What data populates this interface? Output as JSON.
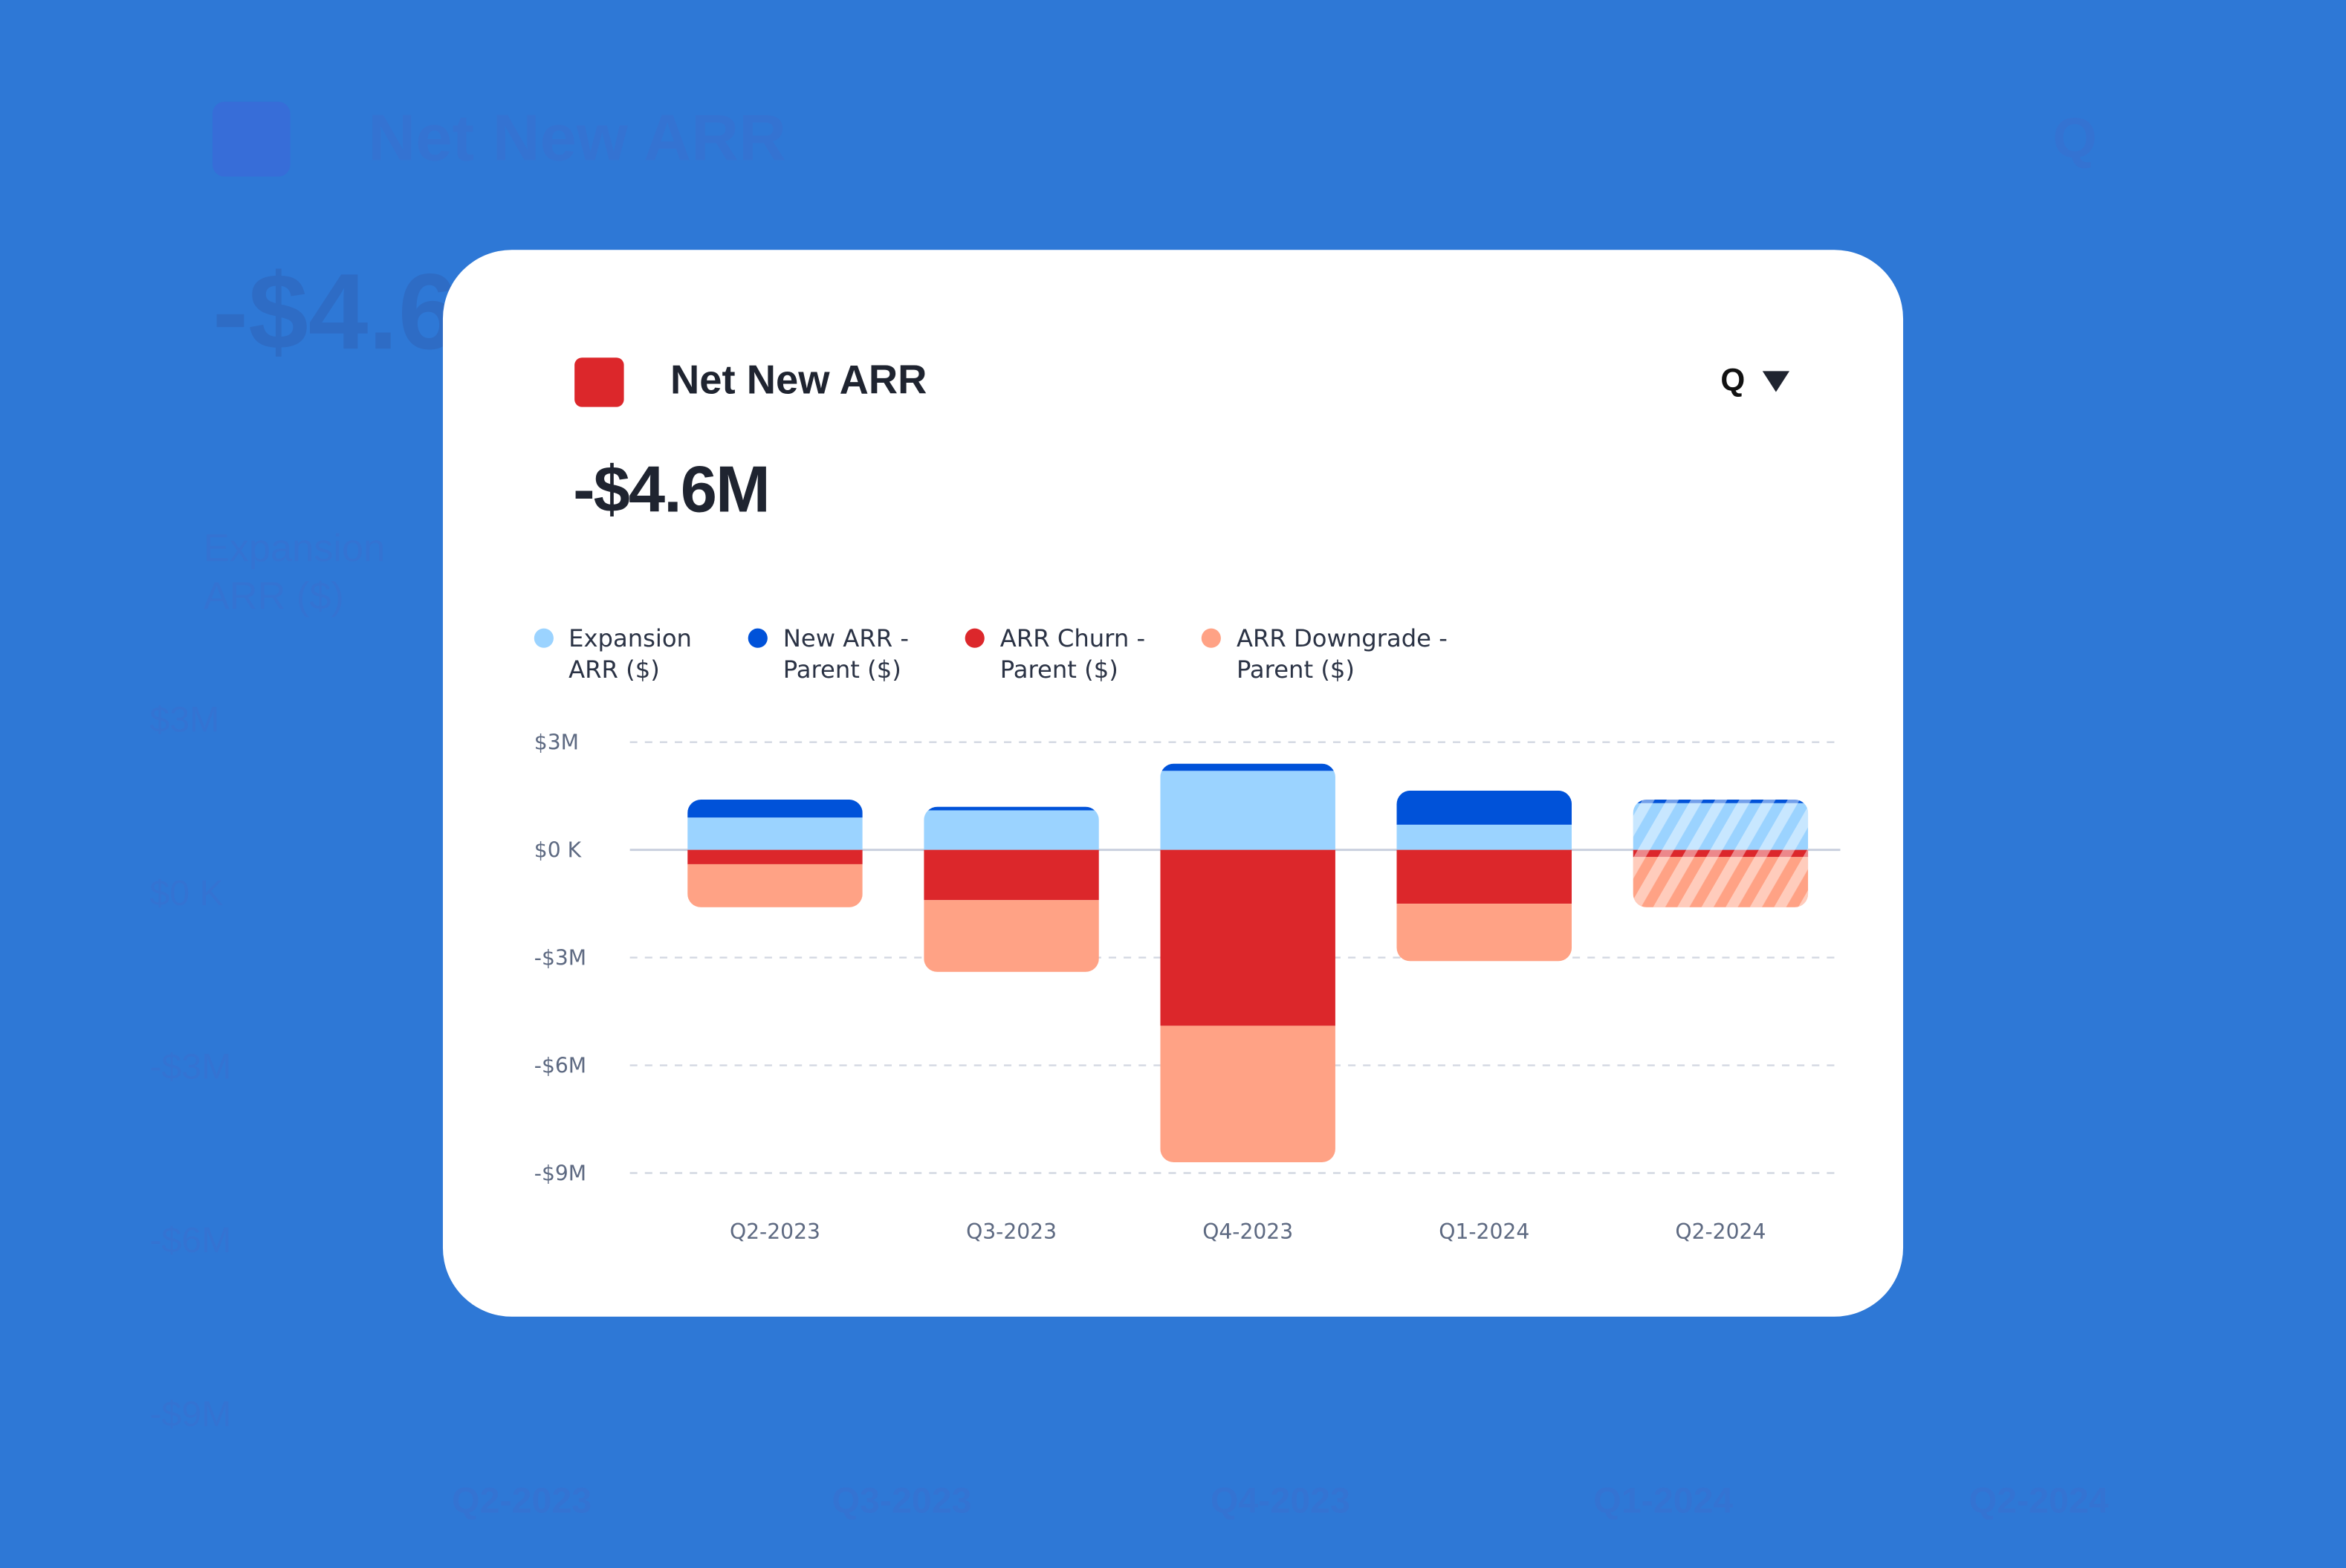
{
  "header": {
    "title": "Net New ARR",
    "period_label": "Q",
    "kpi_value": "-$4.6M"
  },
  "colors": {
    "background": "#2E78D6",
    "expansion": "#9BD3FF",
    "new_arr": "#0052D9",
    "churn": "#DC272B",
    "downgrade": "#FFA285",
    "title_marker": "#DC272B"
  },
  "chart_data": {
    "type": "bar",
    "stacked": true,
    "title": "Net New ARR",
    "categories": [
      "Q2-2023",
      "Q3-2023",
      "Q4-2023",
      "Q1-2024",
      "Q2-2024"
    ],
    "projected": [
      false,
      false,
      false,
      false,
      true
    ],
    "series": [
      {
        "name": "Expansion ARR ($)",
        "color": "#9BD3FF",
        "values": [
          0.9,
          1.1,
          2.2,
          0.7,
          1.3
        ]
      },
      {
        "name": "New ARR - Parent ($)",
        "color": "#0052D9",
        "values": [
          0.5,
          0.1,
          0.2,
          0.95,
          0.1
        ]
      },
      {
        "name": "ARR Churn - Parent ($)",
        "color": "#DC272B",
        "values": [
          -0.4,
          -1.4,
          -4.9,
          -1.5,
          -0.2
        ]
      },
      {
        "name": "ARR Downgrade - Parent ($)",
        "color": "#FFA285",
        "values": [
          -1.2,
          -2.0,
          -3.8,
          -1.6,
          -1.4
        ]
      }
    ],
    "legend_labels": [
      "Expansion\nARR ($)",
      "New ARR -\nParent ($)",
      "ARR Churn -\nParent ($)",
      "ARR Downgrade -\nParent ($)"
    ],
    "units": "$M",
    "yticks": [
      3,
      0,
      -3,
      -6,
      -9
    ],
    "ytick_labels": [
      "$3M",
      "$0 K",
      "-$3M",
      "-$6M",
      "-$9M"
    ],
    "ylim": [
      -9,
      3
    ],
    "grid": true,
    "legend_position": "top-left",
    "xlabel": "",
    "ylabel": ""
  }
}
